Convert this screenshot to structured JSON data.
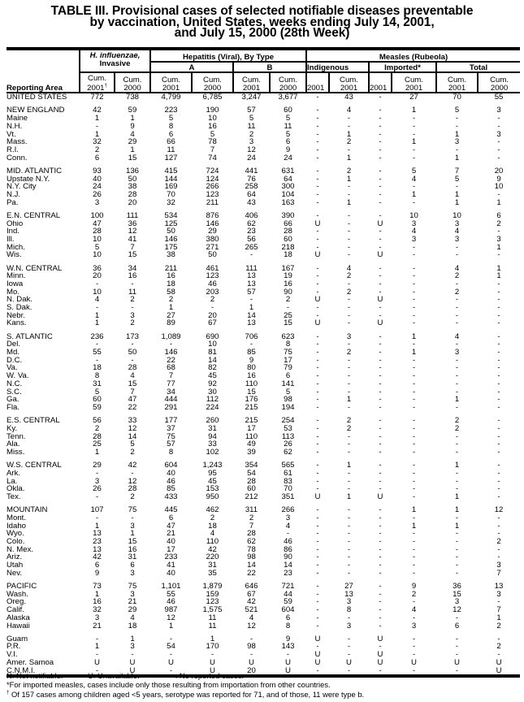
{
  "title": [
    "TABLE III. Provisional cases of selected notifiable diseases preventable",
    "by vaccination, United States, weeks ending July 14, 2001,",
    "and July 15, 2000 (28th Week)"
  ],
  "header": {
    "reporting_area": "Reporting Area",
    "hflu_line1": "H. influenzae,",
    "hflu_line2": "Invasive",
    "hepatitis": "Hepatitis (Viral), By Type",
    "hep_a": "A",
    "hep_b": "B",
    "measles": "Measles (Rubeola)",
    "indigenous": "Indigenous",
    "imported": "Imported*",
    "total": "Total",
    "cum": "Cum.",
    "y2001": "2001",
    "y2000": "2000",
    "dagger": "†"
  },
  "groups": [
    [
      [
        "UNITED STATES",
        "772",
        "738",
        "4,799",
        "6,785",
        "3,247",
        "3,677",
        "-",
        "43",
        "-",
        "27",
        "70",
        "55"
      ]
    ],
    [
      [
        "NEW ENGLAND",
        "42",
        "59",
        "223",
        "190",
        "57",
        "60",
        "-",
        "4",
        "-",
        "1",
        "5",
        "3"
      ],
      [
        "Maine",
        "1",
        "1",
        "5",
        "10",
        "5",
        "5",
        "-",
        "-",
        "-",
        "-",
        "-",
        "-"
      ],
      [
        "N.H.",
        "-",
        "9",
        "8",
        "16",
        "11",
        "11",
        "-",
        "-",
        "-",
        "-",
        "-",
        "-"
      ],
      [
        "Vt.",
        "1",
        "4",
        "6",
        "5",
        "2",
        "5",
        "-",
        "1",
        "-",
        "-",
        "1",
        "3"
      ],
      [
        "Mass.",
        "32",
        "29",
        "66",
        "78",
        "3",
        "6",
        "-",
        "2",
        "-",
        "1",
        "3",
        "-"
      ],
      [
        "R.I.",
        "2",
        "1",
        "11",
        "7",
        "12",
        "9",
        "-",
        "-",
        "-",
        "-",
        "-",
        "-"
      ],
      [
        "Conn.",
        "6",
        "15",
        "127",
        "74",
        "24",
        "24",
        "-",
        "1",
        "-",
        "-",
        "1",
        "-"
      ]
    ],
    [
      [
        "MID. ATLANTIC",
        "93",
        "136",
        "415",
        "724",
        "441",
        "631",
        "-",
        "2",
        "-",
        "5",
        "7",
        "20"
      ],
      [
        "Upstate N.Y.",
        "40",
        "50",
        "144",
        "124",
        "76",
        "64",
        "-",
        "1",
        "-",
        "4",
        "5",
        "9"
      ],
      [
        "N.Y. City",
        "24",
        "38",
        "169",
        "266",
        "258",
        "300",
        "-",
        "-",
        "-",
        "-",
        "-",
        "10"
      ],
      [
        "N.J.",
        "26",
        "28",
        "70",
        "123",
        "64",
        "104",
        "-",
        "-",
        "-",
        "1",
        "1",
        "-"
      ],
      [
        "Pa.",
        "3",
        "20",
        "32",
        "211",
        "43",
        "163",
        "-",
        "1",
        "-",
        "-",
        "1",
        "1"
      ]
    ],
    [
      [
        "E.N. CENTRAL",
        "100",
        "111",
        "534",
        "876",
        "406",
        "390",
        "-",
        "-",
        "-",
        "10",
        "10",
        "6"
      ],
      [
        "Ohio",
        "47",
        "36",
        "125",
        "146",
        "62",
        "66",
        "U",
        "-",
        "U",
        "3",
        "3",
        "2"
      ],
      [
        "Ind.",
        "28",
        "12",
        "50",
        "29",
        "23",
        "28",
        "-",
        "-",
        "-",
        "4",
        "4",
        "-"
      ],
      [
        "Ill.",
        "10",
        "41",
        "146",
        "380",
        "56",
        "60",
        "-",
        "-",
        "-",
        "3",
        "3",
        "3"
      ],
      [
        "Mich.",
        "5",
        "7",
        "175",
        "271",
        "265",
        "218",
        "-",
        "-",
        "-",
        "-",
        "-",
        "1"
      ],
      [
        "Wis.",
        "10",
        "15",
        "38",
        "50",
        "-",
        "18",
        "U",
        "-",
        "U",
        "-",
        "-",
        "-"
      ]
    ],
    [
      [
        "W.N. CENTRAL",
        "36",
        "34",
        "211",
        "461",
        "111",
        "167",
        "-",
        "4",
        "-",
        "-",
        "4",
        "1"
      ],
      [
        "Minn.",
        "20",
        "16",
        "16",
        "123",
        "13",
        "19",
        "-",
        "2",
        "-",
        "-",
        "2",
        "1"
      ],
      [
        "Iowa",
        "-",
        "-",
        "18",
        "46",
        "13",
        "16",
        "-",
        "-",
        "-",
        "-",
        "-",
        "-"
      ],
      [
        "Mo.",
        "10",
        "11",
        "58",
        "203",
        "57",
        "90",
        "-",
        "2",
        "-",
        "-",
        "2",
        "-"
      ],
      [
        "N. Dak.",
        "4",
        "2",
        "2",
        "2",
        "-",
        "2",
        "U",
        "-",
        "U",
        "-",
        "-",
        "-"
      ],
      [
        "S. Dak.",
        "-",
        "-",
        "1",
        "-",
        "1",
        "-",
        "-",
        "-",
        "-",
        "-",
        "-",
        "-"
      ],
      [
        "Nebr.",
        "1",
        "3",
        "27",
        "20",
        "14",
        "25",
        "-",
        "-",
        "-",
        "-",
        "-",
        "-"
      ],
      [
        "Kans.",
        "1",
        "2",
        "89",
        "67",
        "13",
        "15",
        "U",
        "-",
        "U",
        "-",
        "-",
        "-"
      ]
    ],
    [
      [
        "S. ATLANTIC",
        "236",
        "173",
        "1,089",
        "690",
        "706",
        "623",
        "-",
        "3",
        "-",
        "1",
        "4",
        "-"
      ],
      [
        "Del.",
        "-",
        "-",
        "-",
        "10",
        "-",
        "8",
        "-",
        "-",
        "-",
        "-",
        "-",
        "-"
      ],
      [
        "Md.",
        "55",
        "50",
        "146",
        "81",
        "85",
        "75",
        "-",
        "2",
        "-",
        "1",
        "3",
        "-"
      ],
      [
        "D.C.",
        "-",
        "-",
        "22",
        "14",
        "9",
        "17",
        "-",
        "-",
        "-",
        "-",
        "-",
        "-"
      ],
      [
        "Va.",
        "18",
        "28",
        "68",
        "82",
        "80",
        "79",
        "-",
        "-",
        "-",
        "-",
        "-",
        "-"
      ],
      [
        "W. Va.",
        "8",
        "4",
        "7",
        "45",
        "16",
        "6",
        "-",
        "-",
        "-",
        "-",
        "-",
        "-"
      ],
      [
        "N.C.",
        "31",
        "15",
        "77",
        "92",
        "110",
        "141",
        "-",
        "-",
        "-",
        "-",
        "-",
        "-"
      ],
      [
        "S.C.",
        "5",
        "7",
        "34",
        "30",
        "15",
        "5",
        "-",
        "-",
        "-",
        "-",
        "-",
        "-"
      ],
      [
        "Ga.",
        "60",
        "47",
        "444",
        "112",
        "176",
        "98",
        "-",
        "1",
        "-",
        "-",
        "1",
        "-"
      ],
      [
        "Fla.",
        "59",
        "22",
        "291",
        "224",
        "215",
        "194",
        "-",
        "-",
        "-",
        "-",
        "-",
        "-"
      ]
    ],
    [
      [
        "E.S. CENTRAL",
        "56",
        "33",
        "177",
        "260",
        "215",
        "254",
        "-",
        "2",
        "-",
        "-",
        "2",
        "-"
      ],
      [
        "Ky.",
        "2",
        "12",
        "37",
        "31",
        "17",
        "53",
        "-",
        "2",
        "-",
        "-",
        "2",
        "-"
      ],
      [
        "Tenn.",
        "28",
        "14",
        "75",
        "94",
        "110",
        "113",
        "-",
        "-",
        "-",
        "-",
        "-",
        "-"
      ],
      [
        "Ala.",
        "25",
        "5",
        "57",
        "33",
        "49",
        "26",
        "-",
        "-",
        "-",
        "-",
        "-",
        "-"
      ],
      [
        "Miss.",
        "1",
        "2",
        "8",
        "102",
        "39",
        "62",
        "-",
        "-",
        "-",
        "-",
        "-",
        "-"
      ]
    ],
    [
      [
        "W.S. CENTRAL",
        "29",
        "42",
        "604",
        "1,243",
        "354",
        "565",
        "-",
        "1",
        "-",
        "-",
        "1",
        "-"
      ],
      [
        "Ark.",
        "-",
        "-",
        "40",
        "95",
        "54",
        "61",
        "-",
        "-",
        "-",
        "-",
        "-",
        "-"
      ],
      [
        "La.",
        "3",
        "12",
        "46",
        "45",
        "28",
        "83",
        "-",
        "-",
        "-",
        "-",
        "-",
        "-"
      ],
      [
        "Okla.",
        "26",
        "28",
        "85",
        "153",
        "60",
        "70",
        "-",
        "-",
        "-",
        "-",
        "-",
        "-"
      ],
      [
        "Tex.",
        "-",
        "2",
        "433",
        "950",
        "212",
        "351",
        "U",
        "1",
        "U",
        "-",
        "1",
        "-"
      ]
    ],
    [
      [
        "MOUNTAIN",
        "107",
        "75",
        "445",
        "462",
        "311",
        "266",
        "-",
        "-",
        "-",
        "1",
        "1",
        "12"
      ],
      [
        "Mont.",
        "-",
        "-",
        "6",
        "2",
        "2",
        "3",
        "-",
        "-",
        "-",
        "-",
        "-",
        "-"
      ],
      [
        "Idaho",
        "1",
        "3",
        "47",
        "18",
        "7",
        "4",
        "-",
        "-",
        "-",
        "1",
        "1",
        "-"
      ],
      [
        "Wyo.",
        "13",
        "1",
        "21",
        "4",
        "28",
        "-",
        "-",
        "-",
        "-",
        "-",
        "-",
        "-"
      ],
      [
        "Colo.",
        "23",
        "15",
        "40",
        "110",
        "62",
        "46",
        "-",
        "-",
        "-",
        "-",
        "-",
        "2"
      ],
      [
        "N. Mex.",
        "13",
        "16",
        "17",
        "42",
        "78",
        "86",
        "-",
        "-",
        "-",
        "-",
        "-",
        "-"
      ],
      [
        "Ariz.",
        "42",
        "31",
        "233",
        "220",
        "98",
        "90",
        "-",
        "-",
        "-",
        "-",
        "-",
        "-"
      ],
      [
        "Utah",
        "6",
        "6",
        "41",
        "31",
        "14",
        "14",
        "-",
        "-",
        "-",
        "-",
        "-",
        "3"
      ],
      [
        "Nev.",
        "9",
        "3",
        "40",
        "35",
        "22",
        "23",
        "-",
        "-",
        "-",
        "-",
        "-",
        "7"
      ]
    ],
    [
      [
        "PACIFIC",
        "73",
        "75",
        "1,101",
        "1,879",
        "646",
        "721",
        "-",
        "27",
        "-",
        "9",
        "36",
        "13"
      ],
      [
        "Wash.",
        "1",
        "3",
        "55",
        "159",
        "67",
        "44",
        "-",
        "13",
        "-",
        "2",
        "15",
        "3"
      ],
      [
        "Oreg.",
        "16",
        "21",
        "46",
        "123",
        "42",
        "59",
        "-",
        "3",
        "-",
        "-",
        "3",
        "-"
      ],
      [
        "Calif.",
        "32",
        "29",
        "987",
        "1,575",
        "521",
        "604",
        "-",
        "8",
        "-",
        "4",
        "12",
        "7"
      ],
      [
        "Alaska",
        "3",
        "4",
        "12",
        "11",
        "4",
        "6",
        "-",
        "-",
        "-",
        "-",
        "-",
        "1"
      ],
      [
        "Hawaii",
        "21",
        "18",
        "1",
        "11",
        "12",
        "8",
        "-",
        "3",
        "-",
        "3",
        "6",
        "2"
      ]
    ],
    [
      [
        "Guam",
        "-",
        "1",
        "-",
        "1",
        "-",
        "9",
        "U",
        "-",
        "U",
        "-",
        "-",
        "-"
      ],
      [
        "P.R.",
        "1",
        "3",
        "54",
        "170",
        "98",
        "143",
        "-",
        "-",
        "-",
        "-",
        "-",
        "2"
      ],
      [
        "V.I.",
        "-",
        "-",
        "-",
        "-",
        "-",
        "-",
        "U",
        "-",
        "U",
        "-",
        "-",
        "-"
      ],
      [
        "Amer. Samoa",
        "U",
        "U",
        "U",
        "U",
        "U",
        "U",
        "U",
        "U",
        "U",
        "U",
        "U",
        "U"
      ],
      [
        "C.N.M.I.",
        "-",
        "U",
        "-",
        "U",
        "20",
        "U",
        "-",
        "-",
        "-",
        "-",
        "-",
        "U"
      ]
    ]
  ],
  "footnotes": {
    "n": "N: Not notifiable.",
    "u": "U: Unavailable.",
    "dash": "- : No reported cases.",
    "imported": "*For imported measles, cases include only those resulting from importation from other countries.",
    "dagger": "†",
    "hflu": " Of 157 cases among children aged <5 years, serotype was reported for 71, and of those, 11 were type b."
  }
}
